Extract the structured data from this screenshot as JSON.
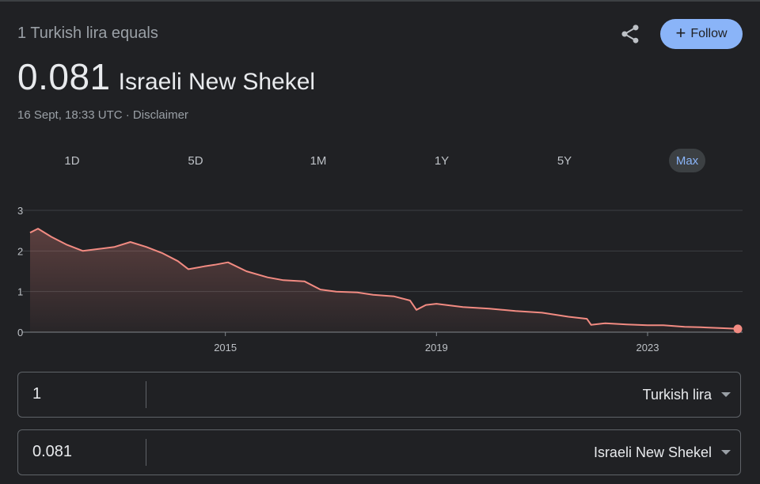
{
  "header": {
    "subtitle": "1 Turkish lira equals",
    "rate_value": "0.081",
    "rate_unit": "Israeli New Shekel",
    "timestamp": "16 Sept, 18:33 UTC · Disclaimer",
    "follow_label": "Follow",
    "follow_icon": "plus-icon",
    "share_icon": "share-icon"
  },
  "ranges": [
    {
      "label": "1D",
      "active": false
    },
    {
      "label": "5D",
      "active": false
    },
    {
      "label": "1M",
      "active": false
    },
    {
      "label": "1Y",
      "active": false
    },
    {
      "label": "5Y",
      "active": false
    },
    {
      "label": "Max",
      "active": true
    }
  ],
  "chart_data": {
    "type": "area",
    "title": "",
    "xlabel": "",
    "ylabel": "",
    "x_ticks": [
      "2015",
      "2019",
      "2023"
    ],
    "y_ticks": [
      0,
      1,
      2,
      3
    ],
    "ylim": [
      0,
      3
    ],
    "xlim": [
      2011.3,
      2024.71
    ],
    "grid": true,
    "line_color": "#f28b82",
    "series": [
      {
        "x": [
          2011.3,
          2011.45,
          2011.7,
          2012.0,
          2012.3,
          2012.6,
          2012.9,
          2013.2,
          2013.5,
          2013.8,
          2014.1,
          2014.3,
          2014.6,
          2014.8,
          2015.05,
          2015.4,
          2015.8,
          2016.1,
          2016.5,
          2016.8,
          2017.1,
          2017.5,
          2017.8,
          2018.2,
          2018.5,
          2018.62,
          2018.8,
          2019.0,
          2019.5,
          2020.0,
          2020.5,
          2021.0,
          2021.5,
          2021.85,
          2021.93,
          2022.2,
          2022.6,
          2023.0,
          2023.3,
          2023.7,
          2024.0,
          2024.4,
          2024.71
        ],
        "y": [
          2.45,
          2.55,
          2.35,
          2.15,
          2.0,
          2.05,
          2.1,
          2.22,
          2.1,
          1.95,
          1.75,
          1.55,
          1.62,
          1.66,
          1.72,
          1.5,
          1.35,
          1.28,
          1.25,
          1.05,
          1.0,
          0.98,
          0.92,
          0.88,
          0.78,
          0.55,
          0.67,
          0.7,
          0.62,
          0.58,
          0.52,
          0.48,
          0.38,
          0.33,
          0.18,
          0.22,
          0.19,
          0.17,
          0.17,
          0.13,
          0.12,
          0.1,
          0.081
        ]
      }
    ]
  },
  "converter": [
    {
      "amount": "1",
      "currency": "Turkish lira"
    },
    {
      "amount": "0.081",
      "currency": "Israeli New Shekel"
    }
  ]
}
